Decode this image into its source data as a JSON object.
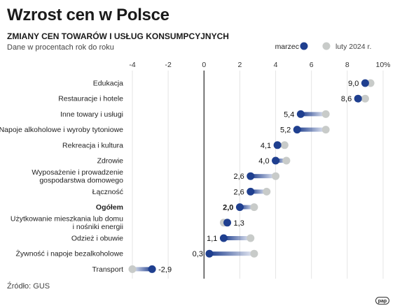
{
  "header": {
    "title": "Wzrost cen w Polsce",
    "subtitle": "ZMIANY CEN TOWARÓW I USŁUG KONSUMPCYJNYCH",
    "note": "Dane w procentach rok do roku"
  },
  "footer": {
    "source": "Źródło: GUS",
    "logo_text": "pap"
  },
  "colors": {
    "march": "#1f3f8f",
    "feb": "#c8cbc9",
    "axis_zero": "#222222",
    "grid": "#e4e4e4"
  },
  "chart_data": {
    "type": "dumbbell",
    "title": "Wzrost cen w Polsce",
    "xlim": [
      -4,
      10
    ],
    "x_ticks": [
      "-4",
      "-2",
      "0",
      "2",
      "4",
      "6",
      "8",
      "10%"
    ],
    "legend": {
      "placement": "top-right",
      "march_label": "marzec",
      "feb_label": "luty 2024 r."
    },
    "grid": true,
    "categories": [
      {
        "label": [
          "Edukacja"
        ],
        "march": 9.0,
        "march_label": "9,0",
        "feb": 9.3,
        "bold": false
      },
      {
        "label": [
          "Restauracje i hotele"
        ],
        "march": 8.6,
        "march_label": "8,6",
        "feb": 9.0,
        "bold": false
      },
      {
        "label": [
          "Inne towary i usługi"
        ],
        "march": 5.4,
        "march_label": "5,4",
        "feb": 6.8,
        "bold": false
      },
      {
        "label": [
          "Napoje alkoholowe i wyroby tytoniowe"
        ],
        "march": 5.2,
        "march_label": "5,2",
        "feb": 6.8,
        "bold": false
      },
      {
        "label": [
          "Rekreacja i kultura"
        ],
        "march": 4.1,
        "march_label": "4,1",
        "feb": 4.5,
        "bold": false
      },
      {
        "label": [
          "Zdrowie"
        ],
        "march": 4.0,
        "march_label": "4,0",
        "feb": 4.6,
        "bold": false
      },
      {
        "label": [
          "Wyposażenie i prowadzenie",
          "gospodarstwa domowego"
        ],
        "march": 2.6,
        "march_label": "2,6",
        "feb": 4.0,
        "bold": false
      },
      {
        "label": [
          "Łączność"
        ],
        "march": 2.6,
        "march_label": "2,6",
        "feb": 3.5,
        "bold": false
      },
      {
        "label": [
          "Ogółem"
        ],
        "march": 2.0,
        "march_label": "2,0",
        "feb": 2.8,
        "bold": true
      },
      {
        "label": [
          "Użytkowanie mieszkania lub domu",
          "i nośniki energii"
        ],
        "march": 1.3,
        "march_label": "1,3",
        "feb": 1.1,
        "bold": false
      },
      {
        "label": [
          "Odzież i obuwie"
        ],
        "march": 1.1,
        "march_label": "1,1",
        "feb": 2.6,
        "bold": false
      },
      {
        "label": [
          "Żywność i napoje bezalkoholowe"
        ],
        "march": 0.3,
        "march_label": "0,3",
        "feb": 2.8,
        "bold": false
      },
      {
        "label": [
          "Transport"
        ],
        "march": -2.9,
        "march_label": "-2,9",
        "feb": -4.0,
        "bold": false
      }
    ]
  }
}
